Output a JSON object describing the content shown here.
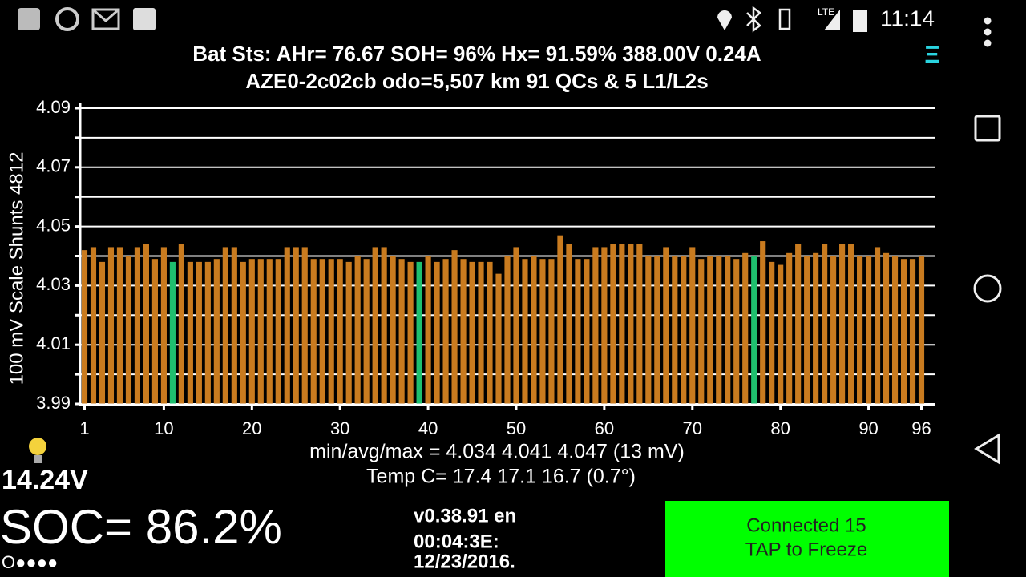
{
  "status_bar": {
    "network": "LTE",
    "time": "11:14"
  },
  "header": {
    "line1": "Bat Sts:  AHr= 76.67  SOH= 96%   Hx= 91.59%   388.00V 0.24A",
    "line2": "AZE0-2c02cb odo=5,507 km  91 QCs & 5 L1/L2s",
    "menu": "Ξ"
  },
  "chart_data": {
    "type": "bar",
    "y_label": "100 mV Scale  Shunts 4812",
    "x": [
      1,
      2,
      3,
      4,
      5,
      6,
      7,
      8,
      9,
      10,
      11,
      12,
      13,
      14,
      15,
      16,
      17,
      18,
      19,
      20,
      21,
      22,
      23,
      24,
      25,
      26,
      27,
      28,
      29,
      30,
      31,
      32,
      33,
      34,
      35,
      36,
      37,
      38,
      39,
      40,
      41,
      42,
      43,
      44,
      45,
      46,
      47,
      48,
      49,
      50,
      51,
      52,
      53,
      54,
      55,
      56,
      57,
      58,
      59,
      60,
      61,
      62,
      63,
      64,
      65,
      66,
      67,
      68,
      69,
      70,
      71,
      72,
      73,
      74,
      75,
      76,
      77,
      78,
      79,
      80,
      81,
      82,
      83,
      84,
      85,
      86,
      87,
      88,
      89,
      90,
      91,
      92,
      93,
      94,
      95,
      96
    ],
    "values": [
      4.042,
      4.043,
      4.038,
      4.043,
      4.043,
      4.04,
      4.043,
      4.044,
      4.039,
      4.043,
      4.038,
      4.044,
      4.038,
      4.038,
      4.038,
      4.039,
      4.043,
      4.043,
      4.038,
      4.039,
      4.039,
      4.039,
      4.039,
      4.043,
      4.043,
      4.043,
      4.039,
      4.039,
      4.039,
      4.039,
      4.038,
      4.04,
      4.039,
      4.043,
      4.043,
      4.04,
      4.039,
      4.038,
      4.038,
      4.04,
      4.038,
      4.039,
      4.042,
      4.039,
      4.038,
      4.038,
      4.038,
      4.034,
      4.04,
      4.043,
      4.039,
      4.04,
      4.039,
      4.039,
      4.047,
      4.044,
      4.039,
      4.039,
      4.043,
      4.043,
      4.044,
      4.044,
      4.044,
      4.044,
      4.04,
      4.04,
      4.043,
      4.04,
      4.04,
      4.043,
      4.039,
      4.04,
      4.04,
      4.04,
      4.039,
      4.041,
      4.04,
      4.045,
      4.038,
      4.037,
      4.041,
      4.044,
      4.04,
      4.041,
      4.044,
      4.04,
      4.044,
      4.044,
      4.04,
      4.04,
      4.043,
      4.041,
      4.04,
      4.039,
      4.039,
      4.04
    ],
    "color": "#c97b1f",
    "shunted": [
      11,
      39,
      77
    ],
    "shunt_color": "#1fbf6f",
    "xlim": [
      0.5,
      96.5
    ],
    "xticks": [
      1,
      10,
      20,
      30,
      40,
      50,
      60,
      70,
      80,
      90,
      96
    ],
    "ylim": [
      3.99,
      4.09
    ],
    "yticks": [
      3.99,
      4.01,
      4.03,
      4.05,
      4.07,
      4.09
    ],
    "minor_yticks": [
      4.0,
      4.02,
      4.04,
      4.06,
      4.08
    ],
    "grid": true
  },
  "stats": {
    "line1": "min/avg/max = 4.034 4.041 4.047  (13 mV)",
    "line2": "Temp C= 17.4  17.1  16.7  (0.7°)"
  },
  "footer": {
    "voltage": "14.24V",
    "soc": "SOC= 86.2%",
    "dots": "O●●●●",
    "version": "v0.38.91 en",
    "device": "00:04:3E:",
    "date": "12/23/2016.",
    "button_line1": "Connected 15",
    "button_line2": "TAP to Freeze"
  }
}
